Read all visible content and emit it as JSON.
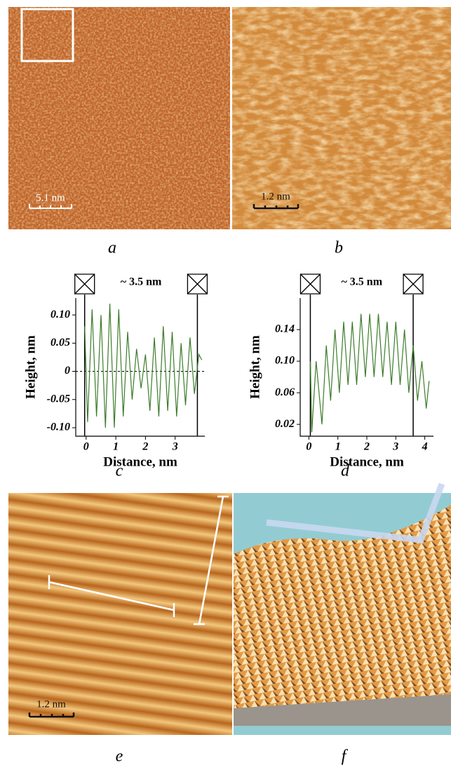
{
  "panels": {
    "a": {
      "label": "a",
      "scale": "5.1 nm"
    },
    "b": {
      "label": "b",
      "scale": "1.2 nm"
    },
    "c": {
      "label": "c"
    },
    "d": {
      "label": "d"
    },
    "e": {
      "label": "e",
      "scale": "1.2 nm"
    },
    "f": {
      "label": "f"
    }
  },
  "chart_data": [
    {
      "type": "line",
      "annotation": "~ 3.5 nm",
      "x_label": "Distance, nm",
      "y_label": "Height, nm",
      "color": "#3d7d2c",
      "xlim": [
        -0.35,
        4.0
      ],
      "ylim": [
        -0.115,
        0.13
      ],
      "xticks": [
        0,
        1,
        2,
        3
      ],
      "yticks": [
        {
          "value": -0.1,
          "label": "-0.10"
        },
        -0.05,
        0,
        0.05,
        {
          "value": 0.1,
          "label": "0.10"
        }
      ],
      "cursors": [
        -0.05,
        3.75
      ],
      "zero_line": true,
      "x": [
        -0.05,
        0.05,
        0.2,
        0.35,
        0.5,
        0.65,
        0.8,
        0.95,
        1.1,
        1.25,
        1.4,
        1.55,
        1.7,
        1.85,
        2.0,
        2.15,
        2.3,
        2.45,
        2.6,
        2.75,
        2.9,
        3.05,
        3.2,
        3.35,
        3.5,
        3.65,
        3.8,
        3.9
      ],
      "values": [
        0.08,
        -0.09,
        0.11,
        -0.08,
        0.1,
        -0.1,
        0.12,
        -0.1,
        0.11,
        -0.08,
        0.07,
        -0.05,
        0.04,
        -0.03,
        0.03,
        -0.07,
        0.06,
        -0.08,
        0.08,
        -0.07,
        0.07,
        -0.08,
        0.05,
        -0.06,
        0.06,
        -0.04,
        0.03,
        0.02
      ]
    },
    {
      "type": "line",
      "annotation": "~ 3.5 nm",
      "x_label": "Distance, nm",
      "y_label": "Height, nm",
      "color": "#3d7d2c",
      "xlim": [
        -0.3,
        4.3
      ],
      "ylim": [
        0.005,
        0.18
      ],
      "xticks": [
        0,
        1,
        2,
        3,
        4
      ],
      "yticks": [
        0.02,
        0.06,
        {
          "value": 0.1,
          "label": "0.10"
        },
        0.14
      ],
      "cursors": [
        0.05,
        3.6
      ],
      "zero_line": false,
      "x": [
        0.05,
        0.1,
        0.25,
        0.45,
        0.6,
        0.75,
        0.9,
        1.05,
        1.2,
        1.35,
        1.5,
        1.65,
        1.8,
        1.95,
        2.1,
        2.25,
        2.4,
        2.55,
        2.7,
        2.85,
        3.0,
        3.15,
        3.3,
        3.45,
        3.6,
        3.75,
        3.9,
        4.05,
        4.15
      ],
      "values": [
        0.1,
        0.01,
        0.1,
        0.02,
        0.12,
        0.05,
        0.14,
        0.06,
        0.15,
        0.07,
        0.15,
        0.07,
        0.16,
        0.08,
        0.16,
        0.08,
        0.16,
        0.08,
        0.15,
        0.07,
        0.15,
        0.07,
        0.14,
        0.06,
        0.12,
        0.05,
        0.1,
        0.04,
        0.075
      ]
    }
  ]
}
